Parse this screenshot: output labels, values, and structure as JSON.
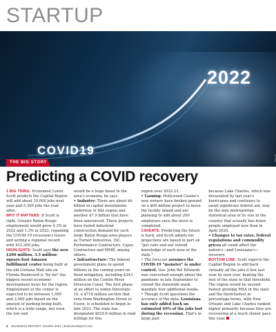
{
  "section": "STARTUP",
  "hero": {
    "year": "2022",
    "label": "COVID19",
    "credit": "iStock"
  },
  "kicker": "THE BIG STORY",
  "headline": "Predicting a COVID recovery",
  "col1": {
    "p1_lead": "1 BIG THING:",
    "p1_text": " Economist Loren Scott predicts the Capital Region will add about 10,000 jobs next year and 5,300 jobs the year after.",
    "p2_lead": "WHY IT MATTERS:",
    "p2_text": " If Scott is right, Greater Baton Rouge employment would grow 4.2% in 2022 and 1.3% in 2023, regaining the COVID-19 recession's losses and setting a regional record with 415,300 jobs.",
    "p3_lead": "HIGHLIGHTS:",
    "p3_text_a": " Scott says ",
    "p3_bold": "the new $200 million, 3.5 million-square-foot Amazon fulfillment center",
    "p3_text_b": " being built at the old Cortana Mall site on Florida Boulevard is \"by far\" the biggest recent economic development news for the region. Employment at the center is expected to be between 1,000 and 3,000 jobs based on the amount of parking being built, which is a wide range, but even the low end"
  },
  "col2": {
    "p1": "would be a huge boost to the area's economy, he says.",
    "b1_lead": "• Industry:",
    "b1_text": " There are about $6 billion in capital investments underway in this region and another $7.9 billion that have been announced. These projects have fueled industrial construction demand for such large Baton Rouge-area players as Turner Industries, ISC, Performance Contractors, Cajun Contractors and MMR, among others.",
    "b2_lead": "• Infrastructure:",
    "b2_text": " The federal government plans to spend billions in the coming years on flood mitigation, including $343 million on the Comite River Diversion Canal. The first phase of an effort to widen Interstate 10, a $716 million section that runs from Washington Street to Essen, is scheduled to begin in late 2022. The state has designated $529.6 million in road lettings for this"
  },
  "col3": {
    "p1": "region over 2022-23.",
    "b1_lead": "• Gaming:",
    "b1_text": " Hollywood Casino's new owners have broken ground on a $60 million project to move the facility inland and are planning to add about 200 employees once the move is completed.",
    "p2_lead": "CAVEATS:",
    "p2_text": " Predicting the future is hard, and Scott admits his projections are based in part on \"gut calls and our overall knowledge of each area of the state.\"",
    "b2_text_a": "• The forecast ",
    "b2_bold": "assumes the COVID-19 \"monster\" is under control.",
    "b2_text_b": " Gov. John Bel Edwards was concerned enough about the pandemic in late September to extend the statewide mask mandate four additional weeks.",
    "b3_text_a": "• Though Scott questions the accuracy of the data, ",
    "b3_bold": "Louisiana has only added back an estimated 49% of the jobs lost during the recession.",
    "b3_text_b": " That's in large part"
  },
  "col4": {
    "p1": "because Lake Charles, which was devastated by last year's hurricanes and continues to await significant federal aid, may be the only metropolitan statistical area of its size in the country that actually has fewer people employed now than in April 2020.",
    "b1_lead": "• Changes to tax rates, federal regulations and commodity prices",
    "b1_text": " all could affect the nation's—and Louisiana's—recovery.",
    "p2_lead": "BOTTOM LINE:",
    "p2_text": " Scott expects the Capital Region to add back virtually all the jobs it lost last year by next year, beating the rest of the state to that threshold. The region would be second-fastest growing MSA in the state and the third-fastest in percentage terms, with New Orleans and Lake Charles ranked higher primarily because they are recovering at a much slower pace this year."
  },
  "footer": {
    "page": "8",
    "publication": "BUSINESS REPORT: October 2021",
    "url": "BusinessReport.com"
  },
  "colors": {
    "accent": "#c8102e",
    "section_gray": "#8c8c8c",
    "hero_navy": "#0d2c47"
  }
}
